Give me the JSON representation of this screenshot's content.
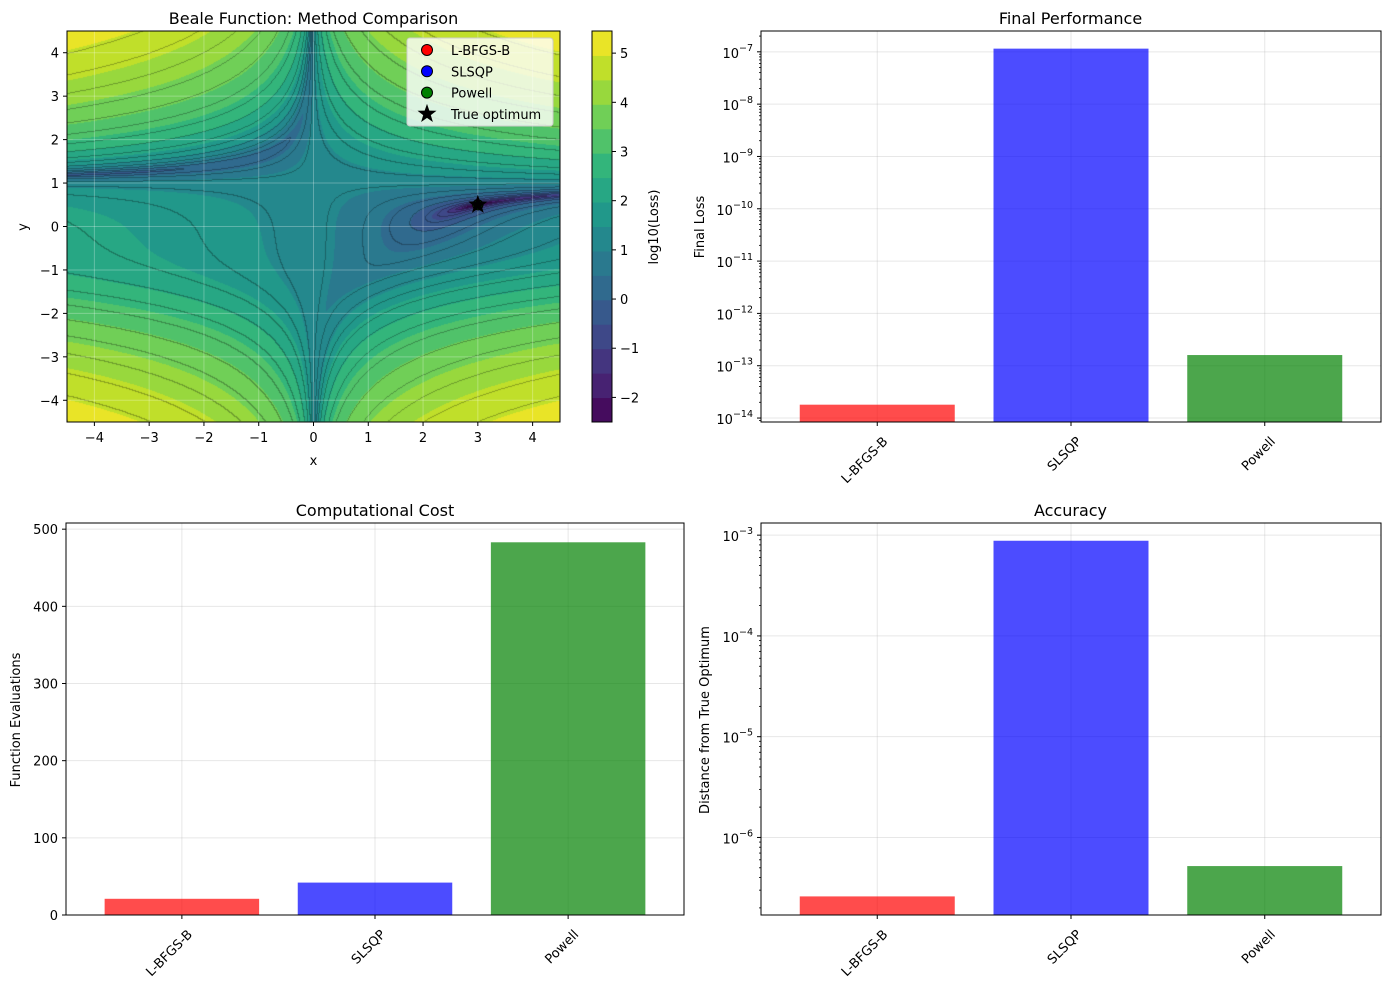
{
  "chart_data": [
    {
      "type": "heatmap",
      "title": "Beale Function: Method Comparison",
      "xlabel": "x",
      "ylabel": "y",
      "xlim": [
        -4.5,
        4.5
      ],
      "ylim": [
        -4.5,
        4.5
      ],
      "x_ticks": [
        -4,
        -3,
        -2,
        -1,
        0,
        1,
        2,
        3,
        4
      ],
      "y_ticks": [
        -4,
        -3,
        -2,
        -1,
        0,
        1,
        2,
        3,
        4
      ],
      "x_tick_labels": [
        "−4",
        "−3",
        "−2",
        "−1",
        "0",
        "1",
        "2",
        "3",
        "4"
      ],
      "y_tick_labels": [
        "−4",
        "−3",
        "−2",
        "−1",
        "0",
        "1",
        "2",
        "3",
        "4"
      ],
      "colorbar": {
        "label": "log10(Loss)",
        "range": [
          -2.5,
          5.45
        ],
        "ticks": [
          -2,
          -1,
          0,
          1,
          2,
          3,
          4,
          5
        ],
        "tick_labels": [
          "−2",
          "−1",
          "0",
          "1",
          "2",
          "3",
          "4",
          "5"
        ],
        "colormap": "viridis"
      },
      "function": "log10(Beale(x, y))",
      "true_optimum": {
        "x": 3,
        "y": 0.5
      },
      "method_endpoints": [
        {
          "name": "L-BFGS-B",
          "x": 3,
          "y": 0.5,
          "color": "#ff0000"
        },
        {
          "name": "SLSQP",
          "x": 3,
          "y": 0.5,
          "color": "#0000ff"
        },
        {
          "name": "Powell",
          "x": 3,
          "y": 0.5,
          "color": "#008000"
        }
      ],
      "legend": {
        "placement": "top-right",
        "entries": [
          {
            "label": "L-BFGS-B",
            "marker": "circle",
            "color": "#ff0000"
          },
          {
            "label": "SLSQP",
            "marker": "circle",
            "color": "#0000ff"
          },
          {
            "label": "Powell",
            "marker": "circle",
            "color": "#008000"
          },
          {
            "label": "True optimum",
            "marker": "star",
            "color": "#000000"
          }
        ]
      },
      "grid": true
    },
    {
      "type": "bar",
      "title": "Final Performance",
      "xlabel": "",
      "ylabel": "Final Loss",
      "y_scale": "log",
      "ylim": [
        8.4e-15,
        2.5e-07
      ],
      "categories": [
        "L-BFGS-B",
        "SLSQP",
        "Powell"
      ],
      "values": [
        1.8e-14,
        1.15e-07,
        1.6e-13
      ],
      "colors": [
        "#ff0000",
        "#0000ff",
        "#008000"
      ],
      "y_ticks": [
        1e-14,
        1e-13,
        1e-12,
        1e-11,
        1e-10,
        1e-09,
        1e-08,
        1e-07
      ],
      "y_tick_labels": [
        {
          "base": "10",
          "exp": "−14"
        },
        {
          "base": "10",
          "exp": "−13"
        },
        {
          "base": "10",
          "exp": "−12"
        },
        {
          "base": "10",
          "exp": "−11"
        },
        {
          "base": "10",
          "exp": "−10"
        },
        {
          "base": "10",
          "exp": "−9"
        },
        {
          "base": "10",
          "exp": "−8"
        },
        {
          "base": "10",
          "exp": "−7"
        }
      ],
      "grid": true
    },
    {
      "type": "bar",
      "title": "Computational Cost",
      "xlabel": "",
      "ylabel": "Function Evaluations",
      "ylim": [
        0,
        508
      ],
      "categories": [
        "L-BFGS-B",
        "SLSQP",
        "Powell"
      ],
      "values": [
        21,
        42,
        483
      ],
      "colors": [
        "#ff0000",
        "#0000ff",
        "#008000"
      ],
      "y_ticks": [
        0,
        100,
        200,
        300,
        400,
        500
      ],
      "y_tick_labels": [
        "0",
        "100",
        "200",
        "300",
        "400",
        "500"
      ],
      "grid": true
    },
    {
      "type": "bar",
      "title": "Accuracy",
      "xlabel": "",
      "ylabel": "Distance from True Optimum",
      "y_scale": "log",
      "ylim": [
        1.7e-07,
        0.00132
      ],
      "categories": [
        "L-BFGS-B",
        "SLSQP",
        "Powell"
      ],
      "values": [
        2.6e-07,
        0.00088,
        5.2e-07
      ],
      "colors": [
        "#ff0000",
        "#0000ff",
        "#008000"
      ],
      "y_ticks": [
        1e-06,
        1e-05,
        0.0001,
        0.001
      ],
      "y_tick_labels": [
        {
          "base": "10",
          "exp": "−6"
        },
        {
          "base": "10",
          "exp": "−5"
        },
        {
          "base": "10",
          "exp": "−4"
        },
        {
          "base": "10",
          "exp": "−3"
        }
      ],
      "grid": true
    }
  ]
}
